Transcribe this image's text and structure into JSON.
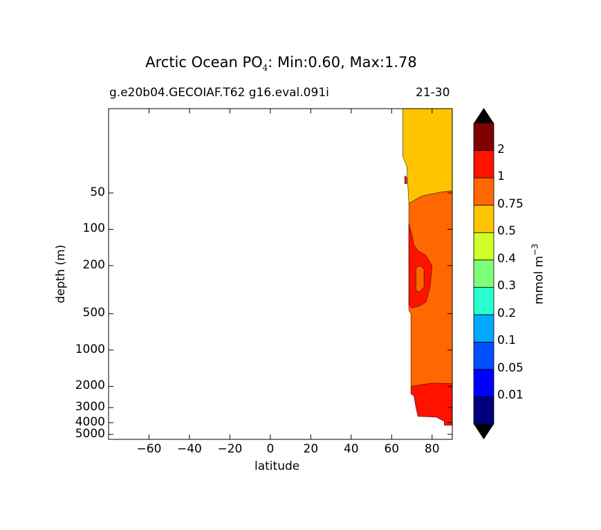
{
  "chart_data": {
    "type": "heatmap",
    "title_main": "Arctic Ocean PO",
    "title_sub": "4",
    "title_rest": ": Min:0.60, Max:1.78",
    "subtitle_left": "g.e20b04.GECOIAF.T62 g16.eval.091i",
    "subtitle_right": "21-30",
    "xlabel": "latitude",
    "ylabel": "depth (m)",
    "xlim": [
      -80,
      90
    ],
    "ylim": [
      5500,
      10
    ],
    "yscale": "log",
    "x_ticks": [
      -60,
      -40,
      -20,
      0,
      20,
      40,
      60,
      80
    ],
    "x_tick_labels": [
      "−60",
      "−40",
      "−20",
      "0",
      "20",
      "40",
      "60",
      "80"
    ],
    "y_ticks": [
      50,
      100,
      200,
      500,
      1000,
      2000,
      3000,
      4000,
      5000
    ],
    "y_tick_labels": [
      "50",
      "100",
      "200",
      "500",
      "1000",
      "2000",
      "3000",
      "4000",
      "5000"
    ],
    "colorbar": {
      "label": "mmol m",
      "label_exp": "−3",
      "levels": [
        "0.01",
        "0.05",
        "0.1",
        "0.2",
        "0.3",
        "0.4",
        "0.5",
        "0.75",
        "1",
        "2"
      ],
      "colors": [
        "#00007f",
        "#0000ff",
        "#0050ff",
        "#00a8ff",
        "#29ffce",
        "#7dff7a",
        "#ceff29",
        "#ffc400",
        "#ff6800",
        "#ff1300",
        "#7f0000"
      ],
      "extend_color": "#000000"
    },
    "regions": [
      {
        "level": "0.5-0.75",
        "color": "#ffc400",
        "outline": [
          [
            65.5,
            10
          ],
          [
            90,
            10
          ],
          [
            90,
            48
          ],
          [
            85,
            49
          ],
          [
            75,
            53
          ],
          [
            68.5,
            61
          ],
          [
            67.5,
            30
          ],
          [
            65.5,
            25
          ]
        ]
      },
      {
        "level": "0.75-1",
        "color": "#ff6800",
        "outline": [
          [
            68.5,
            61
          ],
          [
            75,
            53
          ],
          [
            85,
            49
          ],
          [
            90,
            48
          ],
          [
            90,
            1900
          ],
          [
            69.5,
            2000
          ],
          [
            69.5,
            500
          ],
          [
            68.5,
            470
          ]
        ]
      },
      {
        "level": "1-2",
        "color": "#ff1300",
        "outline": [
          [
            69.5,
            2000
          ],
          [
            80,
            1880
          ],
          [
            90,
            1900
          ],
          [
            90,
            4200
          ],
          [
            86,
            4200
          ],
          [
            86,
            3900
          ],
          [
            82,
            3600
          ],
          [
            73,
            3550
          ],
          [
            72,
            3000
          ],
          [
            71,
            2400
          ],
          [
            69.5,
            2300
          ]
        ]
      },
      {
        "level": "1-2",
        "color": "#ff1300",
        "outline": [
          [
            68.5,
            90
          ],
          [
            70,
            110
          ],
          [
            71,
            135
          ],
          [
            73,
            150
          ],
          [
            77,
            165
          ],
          [
            80,
            200
          ],
          [
            79,
            300
          ],
          [
            77,
            400
          ],
          [
            74,
            430
          ],
          [
            70,
            450
          ],
          [
            68.5,
            420
          ]
        ]
      },
      {
        "level": "0.75-1",
        "color": "#ff6800",
        "outline": [
          [
            72,
            210
          ],
          [
            74,
            200
          ],
          [
            76,
            215
          ],
          [
            76,
            300
          ],
          [
            74,
            330
          ],
          [
            72,
            320
          ]
        ]
      },
      {
        "level": "1-2",
        "color": "#ff1300",
        "outline": [
          [
            66.5,
            36
          ],
          [
            67.5,
            37
          ],
          [
            67.5,
            42
          ],
          [
            66.5,
            42
          ]
        ]
      }
    ]
  }
}
